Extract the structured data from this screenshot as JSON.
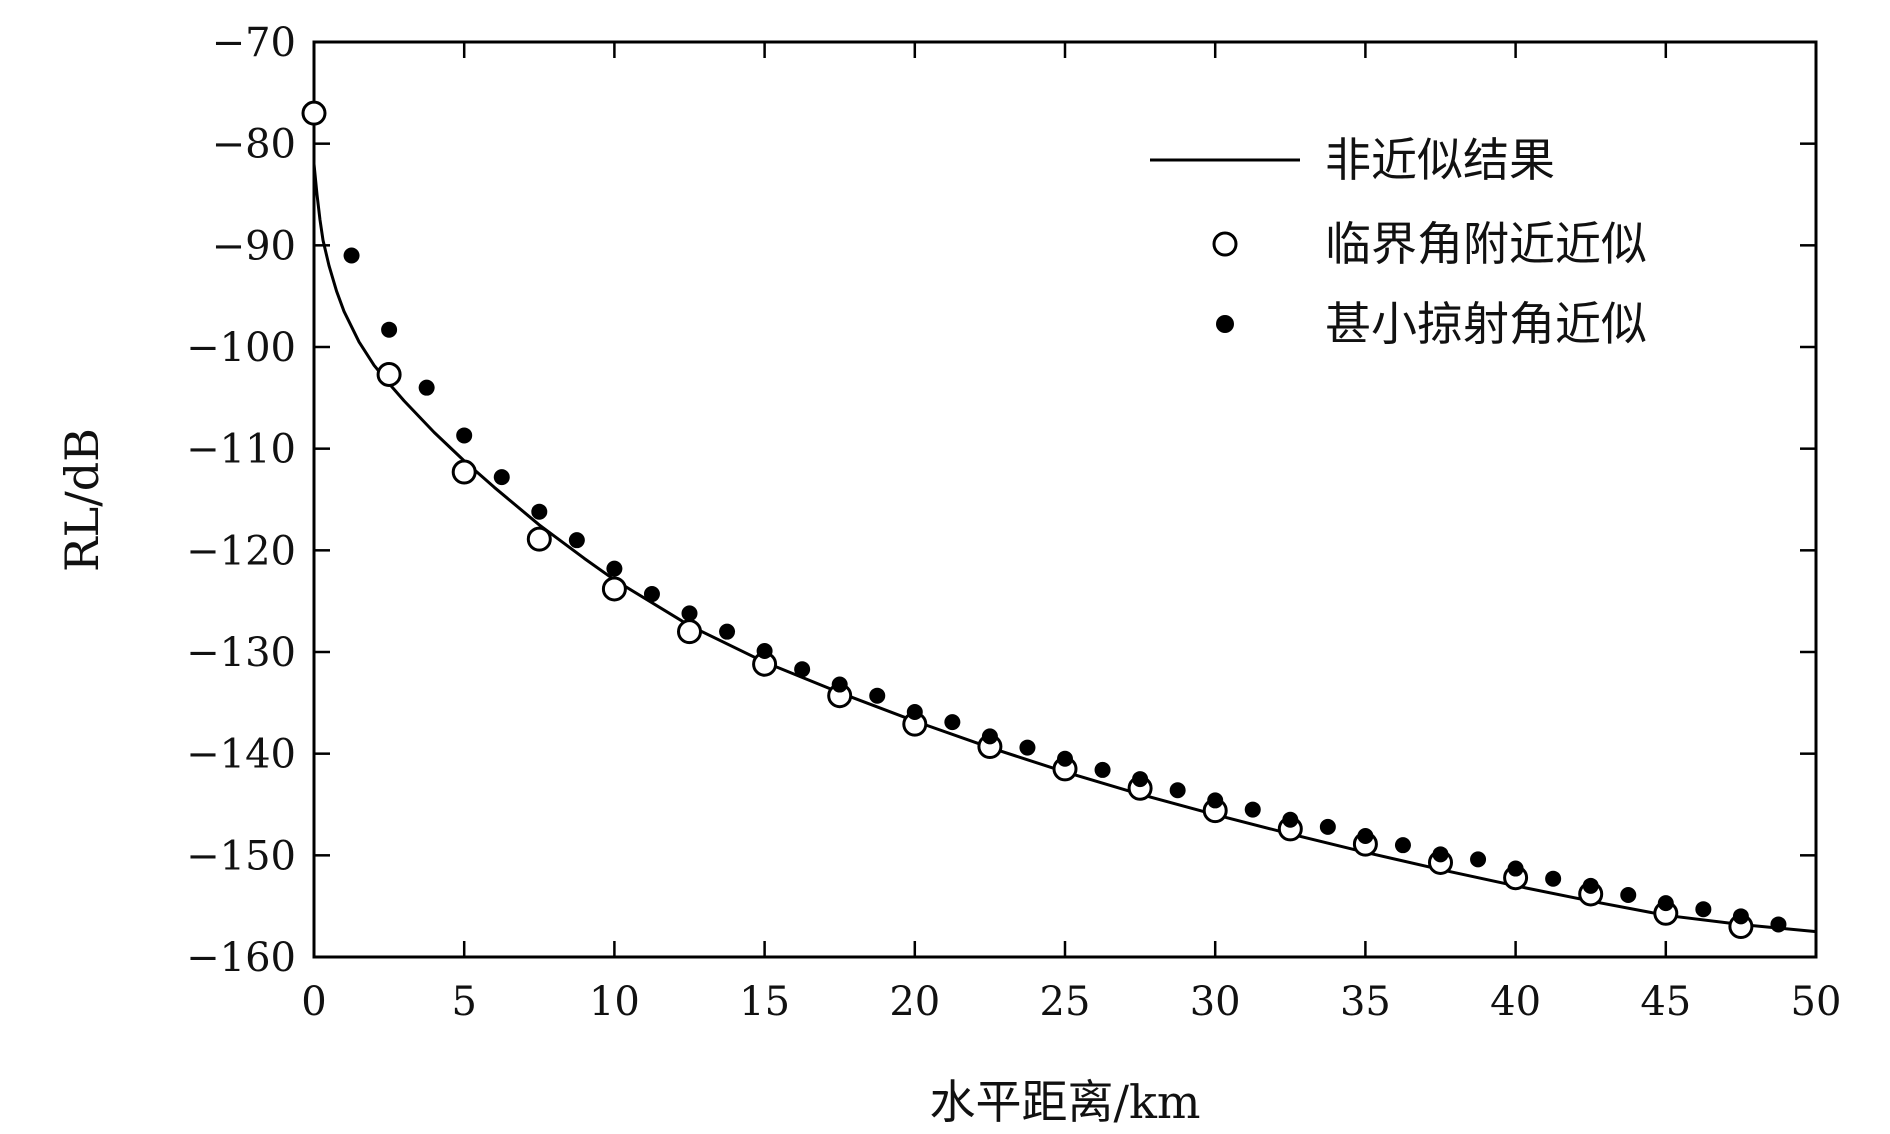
{
  "chart_data": {
    "type": "line",
    "xlabel": "水平距离/km",
    "ylabel": "RL/dB",
    "xlim": [
      0,
      50
    ],
    "ylim": [
      -160,
      -70
    ],
    "x_ticks": [
      0,
      5,
      10,
      15,
      20,
      25,
      30,
      35,
      40,
      45,
      50
    ],
    "y_ticks": [
      -160,
      -150,
      -140,
      -130,
      -120,
      -110,
      -100,
      -90,
      -80,
      -70
    ],
    "x_tick_labels": [
      "0",
      "5",
      "10",
      "15",
      "20",
      "25",
      "30",
      "35",
      "40",
      "45",
      "50"
    ],
    "y_tick_labels": [
      "−160",
      "−150",
      "−140",
      "−130",
      "−120",
      "−110",
      "−100",
      "−90",
      "−80",
      "−70"
    ],
    "grid": false,
    "legend_position": "top-right",
    "series": [
      {
        "name": "非近似结果",
        "style": "line",
        "color": "#000000",
        "x": [
          0.0,
          0.1,
          0.2,
          0.3,
          0.5,
          0.75,
          1.0,
          1.5,
          2.0,
          2.5,
          3.0,
          4.0,
          5.0,
          6.0,
          7.5,
          9.0,
          10.0,
          12.5,
          15.0,
          17.5,
          20.0,
          22.5,
          25.0,
          27.5,
          30.0,
          32.5,
          35.0,
          37.5,
          40.0,
          42.5,
          45.0,
          47.5,
          50.0
        ],
        "y": [
          -82.0,
          -85.0,
          -87.5,
          -89.5,
          -92.0,
          -94.5,
          -96.5,
          -99.5,
          -101.8,
          -103.6,
          -105.3,
          -108.4,
          -111.2,
          -113.8,
          -117.5,
          -120.8,
          -122.9,
          -127.4,
          -131.0,
          -134.0,
          -136.8,
          -139.4,
          -141.8,
          -144.0,
          -146.0,
          -147.9,
          -149.7,
          -151.4,
          -153.0,
          -154.5,
          -155.9,
          -156.8,
          -157.5
        ]
      },
      {
        "name": "临界角附近近似",
        "style": "open-circle",
        "color": "#000000",
        "x": [
          0.0,
          2.5,
          5.0,
          7.5,
          10.0,
          12.5,
          15.0,
          17.5,
          20.0,
          22.5,
          25.0,
          27.5,
          30.0,
          32.5,
          35.0,
          37.5,
          40.0,
          42.5,
          45.0,
          47.5
        ],
        "y": [
          -77.0,
          -102.7,
          -112.3,
          -118.9,
          -123.8,
          -128.0,
          -131.2,
          -134.3,
          -137.1,
          -139.3,
          -141.5,
          -143.4,
          -145.6,
          -147.4,
          -148.9,
          -150.7,
          -152.2,
          -153.8,
          -155.7,
          -157.0
        ]
      },
      {
        "name": "甚小掠射角近似",
        "style": "filled-circle",
        "color": "#000000",
        "x": [
          1.25,
          2.5,
          3.75,
          5.0,
          6.25,
          7.5,
          8.75,
          10.0,
          11.25,
          12.5,
          13.75,
          15.0,
          16.25,
          17.5,
          18.75,
          20.0,
          21.25,
          22.5,
          23.75,
          25.0,
          26.25,
          27.5,
          28.75,
          30.0,
          31.25,
          32.5,
          33.75,
          35.0,
          36.25,
          37.5,
          38.75,
          40.0,
          41.25,
          42.5,
          43.75,
          45.0,
          46.25,
          47.5,
          48.75
        ],
        "y": [
          -91.0,
          -98.3,
          -104.0,
          -108.7,
          -112.8,
          -116.2,
          -119.0,
          -121.8,
          -124.3,
          -126.2,
          -128.0,
          -129.9,
          -131.7,
          -133.2,
          -134.3,
          -135.9,
          -136.9,
          -138.3,
          -139.4,
          -140.5,
          -141.6,
          -142.5,
          -143.6,
          -144.6,
          -145.5,
          -146.5,
          -147.2,
          -148.1,
          -149.0,
          -149.9,
          -150.4,
          -151.3,
          -152.3,
          -153.0,
          -153.9,
          -154.7,
          -155.3,
          -156.0,
          -156.8
        ]
      }
    ]
  }
}
